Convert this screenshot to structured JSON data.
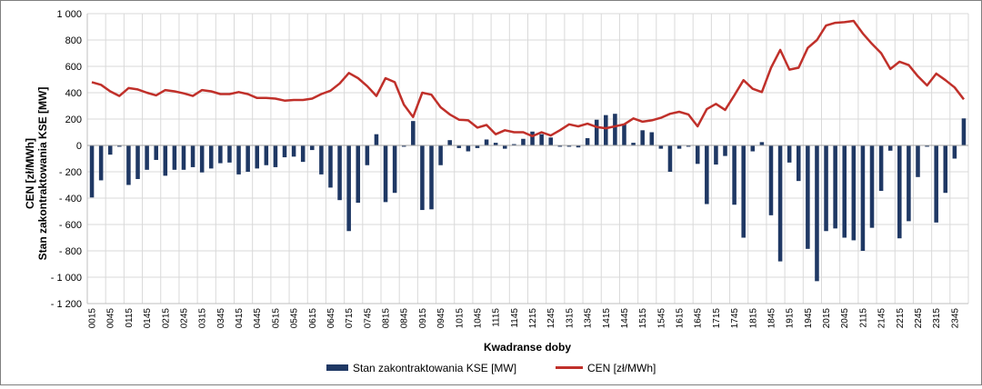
{
  "chart_data": {
    "type": "bar+line",
    "xlabel": "Kwadranse doby",
    "ylabel_lines": [
      "CEN  [zł/MWh]",
      "Stan zakontraktowania KSE [MW]"
    ],
    "ylim": [
      -1200,
      1000
    ],
    "yticks": [
      1000,
      800,
      600,
      400,
      200,
      0,
      -200,
      -400,
      -600,
      -800,
      -1000,
      -1200
    ],
    "ytick_labels": [
      "1 000",
      "800",
      "600",
      "400",
      "200",
      "0",
      "- 200",
      "- 400",
      "- 600",
      "- 800",
      "- 1 000",
      "- 1 200"
    ],
    "x": [
      "0015",
      "0030",
      "0045",
      "0100",
      "0115",
      "0130",
      "0145",
      "0200",
      "0215",
      "0230",
      "0245",
      "0300",
      "0315",
      "0330",
      "0345",
      "0400",
      "0415",
      "0430",
      "0445",
      "0500",
      "0515",
      "0530",
      "0545",
      "0600",
      "0615",
      "0630",
      "0645",
      "0700",
      "0715",
      "0730",
      "0745",
      "0800",
      "0815",
      "0830",
      "0845",
      "0900",
      "0915",
      "0930",
      "0945",
      "1000",
      "1015",
      "1030",
      "1045",
      "1100",
      "1115",
      "1130",
      "1145",
      "1200",
      "1215",
      "1230",
      "1245",
      "1300",
      "1315",
      "1330",
      "1345",
      "1400",
      "1415",
      "1430",
      "1445",
      "1500",
      "1515",
      "1530",
      "1545",
      "1600",
      "1615",
      "1630",
      "1645",
      "1700",
      "1715",
      "1730",
      "1745",
      "1800",
      "1815",
      "1830",
      "1845",
      "1900",
      "1915",
      "1930",
      "1945",
      "2000",
      "2015",
      "2030",
      "2045",
      "2100",
      "2115",
      "2130",
      "2145",
      "2200",
      "2215",
      "2230",
      "2245",
      "2300",
      "2315",
      "2330",
      "2345",
      "2400"
    ],
    "x_tick_labels": [
      "0015",
      "0045",
      "0115",
      "0145",
      "0215",
      "0245",
      "0315",
      "0345",
      "0415",
      "0445",
      "0515",
      "0545",
      "0615",
      "0645",
      "0715",
      "0745",
      "0815",
      "0845",
      "0915",
      "0945",
      "1015",
      "1045",
      "1115",
      "1145",
      "1215",
      "1245",
      "1315",
      "1345",
      "1415",
      "1445",
      "1515",
      "1545",
      "1615",
      "1645",
      "1715",
      "1745",
      "1815",
      "1845",
      "1915",
      "1945",
      "2015",
      "2045",
      "2115",
      "2145",
      "2215",
      "2245",
      "2315",
      "2345"
    ],
    "grid": true,
    "legend_position": "bottom",
    "series": [
      {
        "name": "Stan zakontraktowania KSE [MW]",
        "type": "bar",
        "color": "#1f3864",
        "values": [
          -395,
          -265,
          -70,
          -10,
          -300,
          -255,
          -185,
          -110,
          -230,
          -185,
          -185,
          -165,
          -205,
          -175,
          -135,
          -130,
          -220,
          -200,
          -175,
          -150,
          -165,
          -90,
          -85,
          -125,
          -35,
          -220,
          -320,
          -415,
          -650,
          -435,
          -150,
          85,
          -430,
          -360,
          -10,
          185,
          -490,
          -485,
          -150,
          40,
          -20,
          -45,
          -20,
          45,
          20,
          -25,
          10,
          50,
          105,
          85,
          60,
          -10,
          -10,
          -15,
          55,
          195,
          230,
          240,
          165,
          20,
          115,
          100,
          -25,
          -200,
          -25,
          -10,
          -140,
          -445,
          -145,
          -80,
          -450,
          -700,
          -45,
          25,
          -530,
          -880,
          -130,
          -270,
          -785,
          -1030,
          -650,
          -630,
          -700,
          -720,
          -800,
          -625,
          -345,
          -40,
          -705,
          -575,
          -240,
          -10,
          -585,
          -360,
          -100,
          205
        ]
      },
      {
        "name": "CEN [zł/MWh]",
        "type": "line",
        "color": "#c0302a",
        "values": [
          480,
          460,
          410,
          375,
          435,
          425,
          400,
          380,
          420,
          410,
          395,
          375,
          420,
          410,
          390,
          390,
          405,
          390,
          360,
          360,
          355,
          340,
          345,
          345,
          355,
          390,
          415,
          470,
          550,
          510,
          450,
          375,
          510,
          480,
          310,
          215,
          400,
          385,
          290,
          235,
          195,
          190,
          135,
          155,
          85,
          115,
          100,
          100,
          70,
          100,
          75,
          115,
          160,
          145,
          165,
          140,
          130,
          145,
          160,
          205,
          180,
          190,
          210,
          240,
          255,
          235,
          145,
          275,
          315,
          270,
          380,
          495,
          430,
          405,
          590,
          725,
          575,
          590,
          740,
          800,
          910,
          930,
          935,
          945,
          850,
          770,
          700,
          580,
          635,
          610,
          525,
          455,
          545,
          495,
          440,
          350
        ]
      }
    ]
  }
}
